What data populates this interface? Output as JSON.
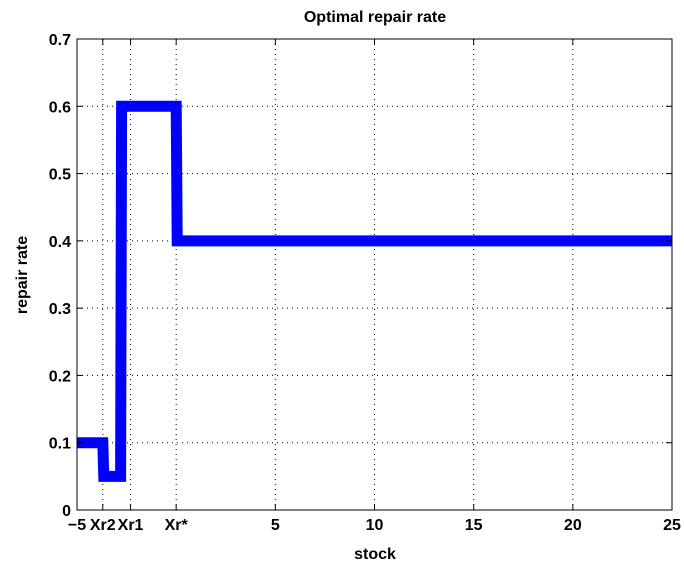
{
  "chart_data": {
    "type": "line",
    "title": "Optimal repair rate",
    "xlabel": "stock",
    "ylabel": "repair rate",
    "xlim": [
      -5,
      25
    ],
    "ylim": [
      0,
      0.7
    ],
    "grid": true,
    "x_ticks": [
      {
        "value": -5,
        "label": "−5"
      },
      {
        "value": -3.7,
        "label": "Xr2"
      },
      {
        "value": -2.3,
        "label": "Xr1"
      },
      {
        "value": 0,
        "label": "Xr*"
      },
      {
        "value": 5,
        "label": "5"
      },
      {
        "value": 10,
        "label": "10"
      },
      {
        "value": 15,
        "label": "15"
      },
      {
        "value": 20,
        "label": "20"
      },
      {
        "value": 25,
        "label": "25"
      }
    ],
    "y_ticks": [
      {
        "value": 0,
        "label": "0"
      },
      {
        "value": 0.1,
        "label": "0.1"
      },
      {
        "value": 0.2,
        "label": "0.2"
      },
      {
        "value": 0.3,
        "label": "0.3"
      },
      {
        "value": 0.4,
        "label": "0.4"
      },
      {
        "value": 0.5,
        "label": "0.5"
      },
      {
        "value": 0.6,
        "label": "0.6"
      },
      {
        "value": 0.7,
        "label": "0.7"
      }
    ],
    "series": [
      {
        "color": "#0000ff",
        "x": [
          -5,
          -3.7,
          -3.65,
          -2.8,
          -2.75,
          0,
          0.05,
          25
        ],
        "y": [
          0.1,
          0.1,
          0.05,
          0.05,
          0.6,
          0.6,
          0.4,
          0.4
        ]
      }
    ]
  }
}
